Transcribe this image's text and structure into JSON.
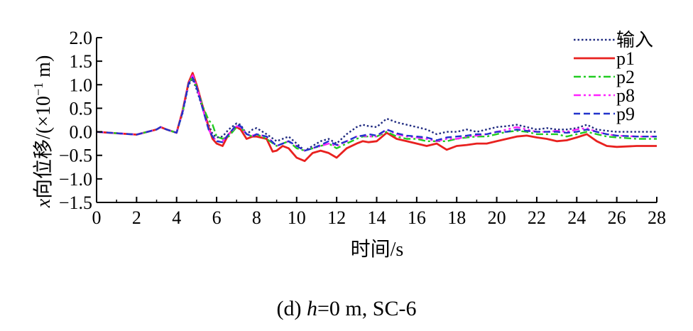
{
  "chart_data": {
    "type": "line",
    "title": "",
    "caption": {
      "prefix": "(d) ",
      "var": "h",
      "suffix": "=0 m, SC-6"
    },
    "xlabel": "时间/s",
    "ylabel": {
      "var": "x",
      "text": "向位移/(×10",
      "exp": "−1",
      "unit": " m)"
    },
    "xlim": [
      0,
      28
    ],
    "ylim": [
      -1.5,
      2.0
    ],
    "xticks": [
      0,
      2,
      4,
      6,
      8,
      10,
      12,
      14,
      16,
      18,
      20,
      22,
      24,
      26,
      28
    ],
    "yticks": [
      2.0,
      1.5,
      1.0,
      0.5,
      0.0,
      -0.5,
      -1.0,
      -1.5
    ],
    "ytick_labels": [
      "2.0",
      "1.5",
      "1.0",
      "0.5",
      "0.0",
      "−0.5",
      "−1.0",
      "−1.5"
    ],
    "legend_position": "top-right",
    "series": [
      {
        "name": "输入",
        "color": "#1f2a80",
        "dash": "dotted",
        "x": [
          0,
          1,
          2,
          3,
          3.2,
          3.5,
          4,
          4.3,
          4.6,
          4.8,
          5,
          5.3,
          5.6,
          5.8,
          6,
          6.3,
          6.6,
          7,
          7.2,
          7.5,
          7.8,
          8,
          8.5,
          9,
          9.3,
          9.6,
          10,
          10.4,
          10.8,
          11.2,
          11.6,
          12,
          12.5,
          13,
          13.3,
          13.6,
          14,
          14.5,
          15,
          15.5,
          16,
          16.5,
          17,
          17.5,
          18,
          18.5,
          19,
          19.5,
          20,
          20.5,
          21,
          21.5,
          22,
          22.5,
          23,
          23.5,
          24,
          24.5,
          25,
          25.5,
          26,
          27,
          28
        ],
        "y": [
          0,
          -0.03,
          -0.06,
          0.05,
          0.1,
          0.05,
          -0.02,
          0.4,
          1.0,
          1.12,
          0.9,
          0.5,
          0.15,
          -0.05,
          -0.12,
          -0.1,
          0.05,
          0.18,
          0.15,
          -0.05,
          0.05,
          0.08,
          -0.05,
          -0.2,
          -0.15,
          -0.1,
          -0.25,
          -0.4,
          -0.3,
          -0.2,
          -0.15,
          -0.25,
          -0.05,
          0.1,
          0.15,
          0.12,
          0.1,
          0.28,
          0.2,
          0.15,
          0.1,
          0.05,
          -0.05,
          0.0,
          0.0,
          0.05,
          0.0,
          0.05,
          0.1,
          0.12,
          0.15,
          0.1,
          0.05,
          0.08,
          0.05,
          0.05,
          0.08,
          0.15,
          0.05,
          0.02,
          0.0,
          0.0,
          0.0
        ]
      },
      {
        "name": "p1",
        "color": "#e8211f",
        "dash": "solid",
        "x": [
          0,
          1,
          2,
          3,
          3.2,
          3.5,
          4,
          4.3,
          4.6,
          4.8,
          5,
          5.3,
          5.6,
          5.8,
          6,
          6.3,
          6.6,
          7,
          7.2,
          7.5,
          7.8,
          8,
          8.5,
          8.8,
          9,
          9.3,
          9.6,
          10,
          10.4,
          10.8,
          11.2,
          11.6,
          12,
          12.5,
          13,
          13.3,
          13.6,
          14,
          14.5,
          15,
          15.5,
          16,
          16.5,
          17,
          17.5,
          18,
          18.5,
          19,
          19.5,
          20,
          20.5,
          21,
          21.5,
          22,
          22.5,
          23,
          23.5,
          24,
          24.5,
          25,
          25.5,
          26,
          27,
          28
        ],
        "y": [
          0,
          -0.03,
          -0.06,
          0.05,
          0.1,
          0.05,
          -0.02,
          0.45,
          1.05,
          1.25,
          1.0,
          0.55,
          0.1,
          -0.15,
          -0.25,
          -0.3,
          -0.05,
          0.1,
          0.05,
          -0.15,
          -0.1,
          -0.1,
          -0.15,
          -0.42,
          -0.4,
          -0.3,
          -0.35,
          -0.55,
          -0.62,
          -0.45,
          -0.4,
          -0.45,
          -0.55,
          -0.35,
          -0.25,
          -0.2,
          -0.22,
          -0.2,
          -0.02,
          -0.15,
          -0.2,
          -0.25,
          -0.3,
          -0.25,
          -0.38,
          -0.3,
          -0.28,
          -0.25,
          -0.25,
          -0.2,
          -0.15,
          -0.1,
          -0.08,
          -0.12,
          -0.15,
          -0.2,
          -0.18,
          -0.12,
          -0.05,
          -0.2,
          -0.3,
          -0.32,
          -0.3,
          -0.3
        ]
      },
      {
        "name": "p2",
        "color": "#22cc22",
        "dash": "dashdot",
        "x": [
          0,
          1,
          2,
          3,
          3.2,
          3.5,
          4,
          4.3,
          4.6,
          4.8,
          5,
          5.3,
          5.6,
          5.8,
          6,
          6.3,
          6.6,
          7,
          7.2,
          7.5,
          7.8,
          8,
          8.5,
          9,
          9.3,
          9.6,
          10,
          10.4,
          10.8,
          11.2,
          11.6,
          12,
          12.5,
          13,
          13.3,
          13.6,
          14,
          14.5,
          15,
          15.5,
          16,
          16.5,
          17,
          17.5,
          18,
          18.5,
          19,
          19.5,
          20,
          20.5,
          21,
          21.5,
          22,
          22.5,
          23,
          23.5,
          24,
          24.5,
          25,
          25.5,
          26,
          27,
          28
        ],
        "y": [
          0,
          -0.03,
          -0.06,
          0.05,
          0.1,
          0.05,
          -0.02,
          0.42,
          1.02,
          1.18,
          0.95,
          0.55,
          0.25,
          0.15,
          -0.1,
          -0.15,
          -0.1,
          0.1,
          0.1,
          -0.05,
          -0.1,
          -0.05,
          -0.15,
          -0.3,
          -0.25,
          -0.2,
          -0.35,
          -0.4,
          -0.35,
          -0.3,
          -0.25,
          -0.35,
          -0.25,
          -0.15,
          -0.1,
          -0.1,
          -0.1,
          0.0,
          -0.1,
          -0.15,
          -0.15,
          -0.2,
          -0.2,
          -0.2,
          -0.15,
          -0.12,
          -0.1,
          -0.1,
          -0.05,
          0.0,
          0.02,
          0.0,
          -0.05,
          -0.05,
          -0.05,
          -0.1,
          -0.05,
          0.0,
          -0.05,
          -0.1,
          -0.12,
          -0.15,
          -0.15
        ]
      },
      {
        "name": "p8",
        "color": "#ff22ff",
        "dash": "dashdotdot",
        "x": [
          0,
          1,
          2,
          3,
          3.2,
          3.5,
          4,
          4.3,
          4.6,
          4.8,
          5,
          5.3,
          5.6,
          5.8,
          6,
          6.3,
          6.6,
          7,
          7.2,
          7.5,
          7.8,
          8,
          8.5,
          9,
          9.3,
          9.6,
          10,
          10.4,
          10.8,
          11.2,
          11.6,
          12,
          12.5,
          13,
          13.3,
          13.6,
          14,
          14.5,
          15,
          15.5,
          16,
          16.5,
          17,
          17.5,
          18,
          18.5,
          19,
          19.5,
          20,
          20.5,
          21,
          21.5,
          22,
          22.5,
          23,
          23.5,
          24,
          24.5,
          25,
          25.5,
          26,
          27,
          28
        ],
        "y": [
          0,
          -0.03,
          -0.06,
          0.05,
          0.1,
          0.05,
          -0.02,
          0.43,
          1.03,
          1.2,
          0.97,
          0.5,
          0.05,
          -0.1,
          -0.2,
          -0.2,
          -0.05,
          0.12,
          0.1,
          -0.05,
          -0.08,
          -0.05,
          -0.1,
          -0.3,
          -0.25,
          -0.2,
          -0.3,
          -0.4,
          -0.35,
          -0.3,
          -0.25,
          -0.3,
          -0.2,
          -0.1,
          -0.08,
          -0.1,
          -0.1,
          0.05,
          -0.05,
          -0.1,
          -0.12,
          -0.15,
          -0.2,
          -0.15,
          -0.15,
          -0.1,
          -0.08,
          -0.05,
          0.0,
          0.05,
          0.1,
          0.05,
          0.0,
          0.0,
          0.02,
          0.0,
          0.05,
          0.08,
          0.0,
          -0.05,
          -0.08,
          -0.1,
          -0.1
        ]
      },
      {
        "name": "p9",
        "color": "#2233cc",
        "dash": "dashed",
        "x": [
          0,
          1,
          2,
          3,
          3.2,
          3.5,
          4,
          4.3,
          4.6,
          4.8,
          5,
          5.3,
          5.6,
          5.8,
          6,
          6.3,
          6.6,
          7,
          7.2,
          7.5,
          7.8,
          8,
          8.5,
          9,
          9.3,
          9.6,
          10,
          10.4,
          10.8,
          11.2,
          11.6,
          12,
          12.5,
          13,
          13.3,
          13.6,
          14,
          14.5,
          15,
          15.5,
          16,
          16.5,
          17,
          17.5,
          18,
          18.5,
          19,
          19.5,
          20,
          20.5,
          21,
          21.5,
          22,
          22.5,
          23,
          23.5,
          24,
          24.5,
          25,
          25.5,
          26,
          27,
          28
        ],
        "y": [
          0,
          -0.03,
          -0.06,
          0.05,
          0.1,
          0.05,
          -0.02,
          0.42,
          1.03,
          1.15,
          0.95,
          0.5,
          0.05,
          -0.1,
          -0.2,
          -0.22,
          -0.05,
          0.15,
          0.12,
          -0.05,
          -0.1,
          -0.05,
          -0.1,
          -0.3,
          -0.25,
          -0.2,
          -0.3,
          -0.4,
          -0.35,
          -0.28,
          -0.2,
          -0.28,
          -0.2,
          -0.1,
          -0.08,
          -0.05,
          -0.08,
          0.05,
          -0.03,
          -0.08,
          -0.1,
          -0.12,
          -0.18,
          -0.12,
          -0.1,
          -0.08,
          -0.05,
          -0.05,
          0.0,
          0.0,
          0.05,
          0.02,
          0.0,
          0.0,
          0.0,
          -0.02,
          0.0,
          0.05,
          0.0,
          -0.05,
          -0.08,
          -0.1,
          -0.1
        ]
      }
    ]
  }
}
